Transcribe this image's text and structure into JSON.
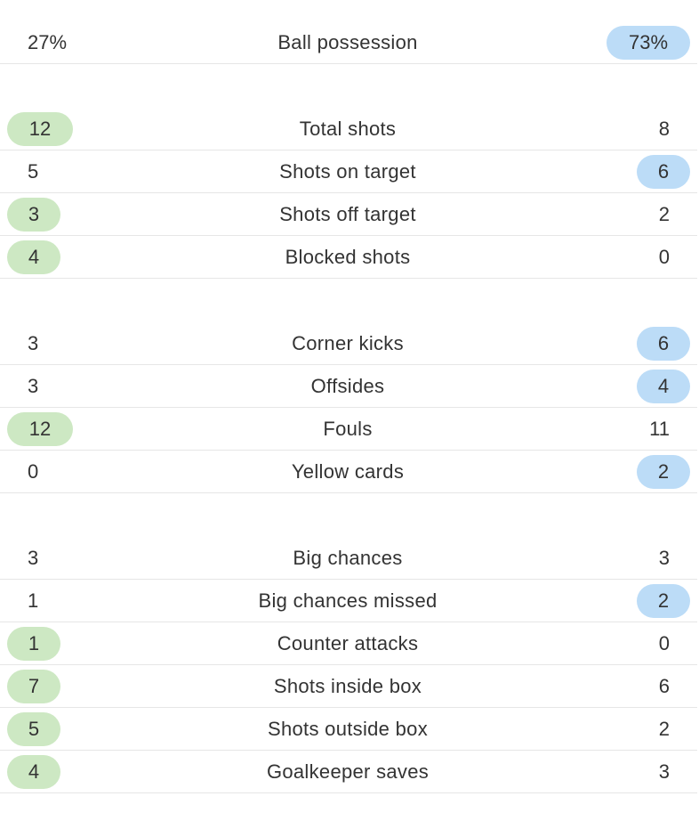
{
  "colors": {
    "home_highlight": "#cde8c3",
    "away_highlight": "#bcdcf7",
    "divider": "#e6e6e6",
    "text": "#333333"
  },
  "groups": [
    {
      "rows": [
        {
          "label": "Ball possession",
          "home": "27%",
          "away": "73%",
          "leader": "away"
        }
      ]
    },
    {
      "rows": [
        {
          "label": "Total shots",
          "home": "12",
          "away": "8",
          "leader": "home"
        },
        {
          "label": "Shots on target",
          "home": "5",
          "away": "6",
          "leader": "away"
        },
        {
          "label": "Shots off target",
          "home": "3",
          "away": "2",
          "leader": "home"
        },
        {
          "label": "Blocked shots",
          "home": "4",
          "away": "0",
          "leader": "home"
        }
      ]
    },
    {
      "rows": [
        {
          "label": "Corner kicks",
          "home": "3",
          "away": "6",
          "leader": "away"
        },
        {
          "label": "Offsides",
          "home": "3",
          "away": "4",
          "leader": "away"
        },
        {
          "label": "Fouls",
          "home": "12",
          "away": "11",
          "leader": "home"
        },
        {
          "label": "Yellow cards",
          "home": "0",
          "away": "2",
          "leader": "away"
        }
      ]
    },
    {
      "rows": [
        {
          "label": "Big chances",
          "home": "3",
          "away": "3",
          "leader": "none"
        },
        {
          "label": "Big chances missed",
          "home": "1",
          "away": "2",
          "leader": "away"
        },
        {
          "label": "Counter attacks",
          "home": "1",
          "away": "0",
          "leader": "home"
        },
        {
          "label": "Shots inside box",
          "home": "7",
          "away": "6",
          "leader": "home"
        },
        {
          "label": "Shots outside box",
          "home": "5",
          "away": "2",
          "leader": "home"
        },
        {
          "label": "Goalkeeper saves",
          "home": "4",
          "away": "3",
          "leader": "home"
        }
      ]
    }
  ]
}
